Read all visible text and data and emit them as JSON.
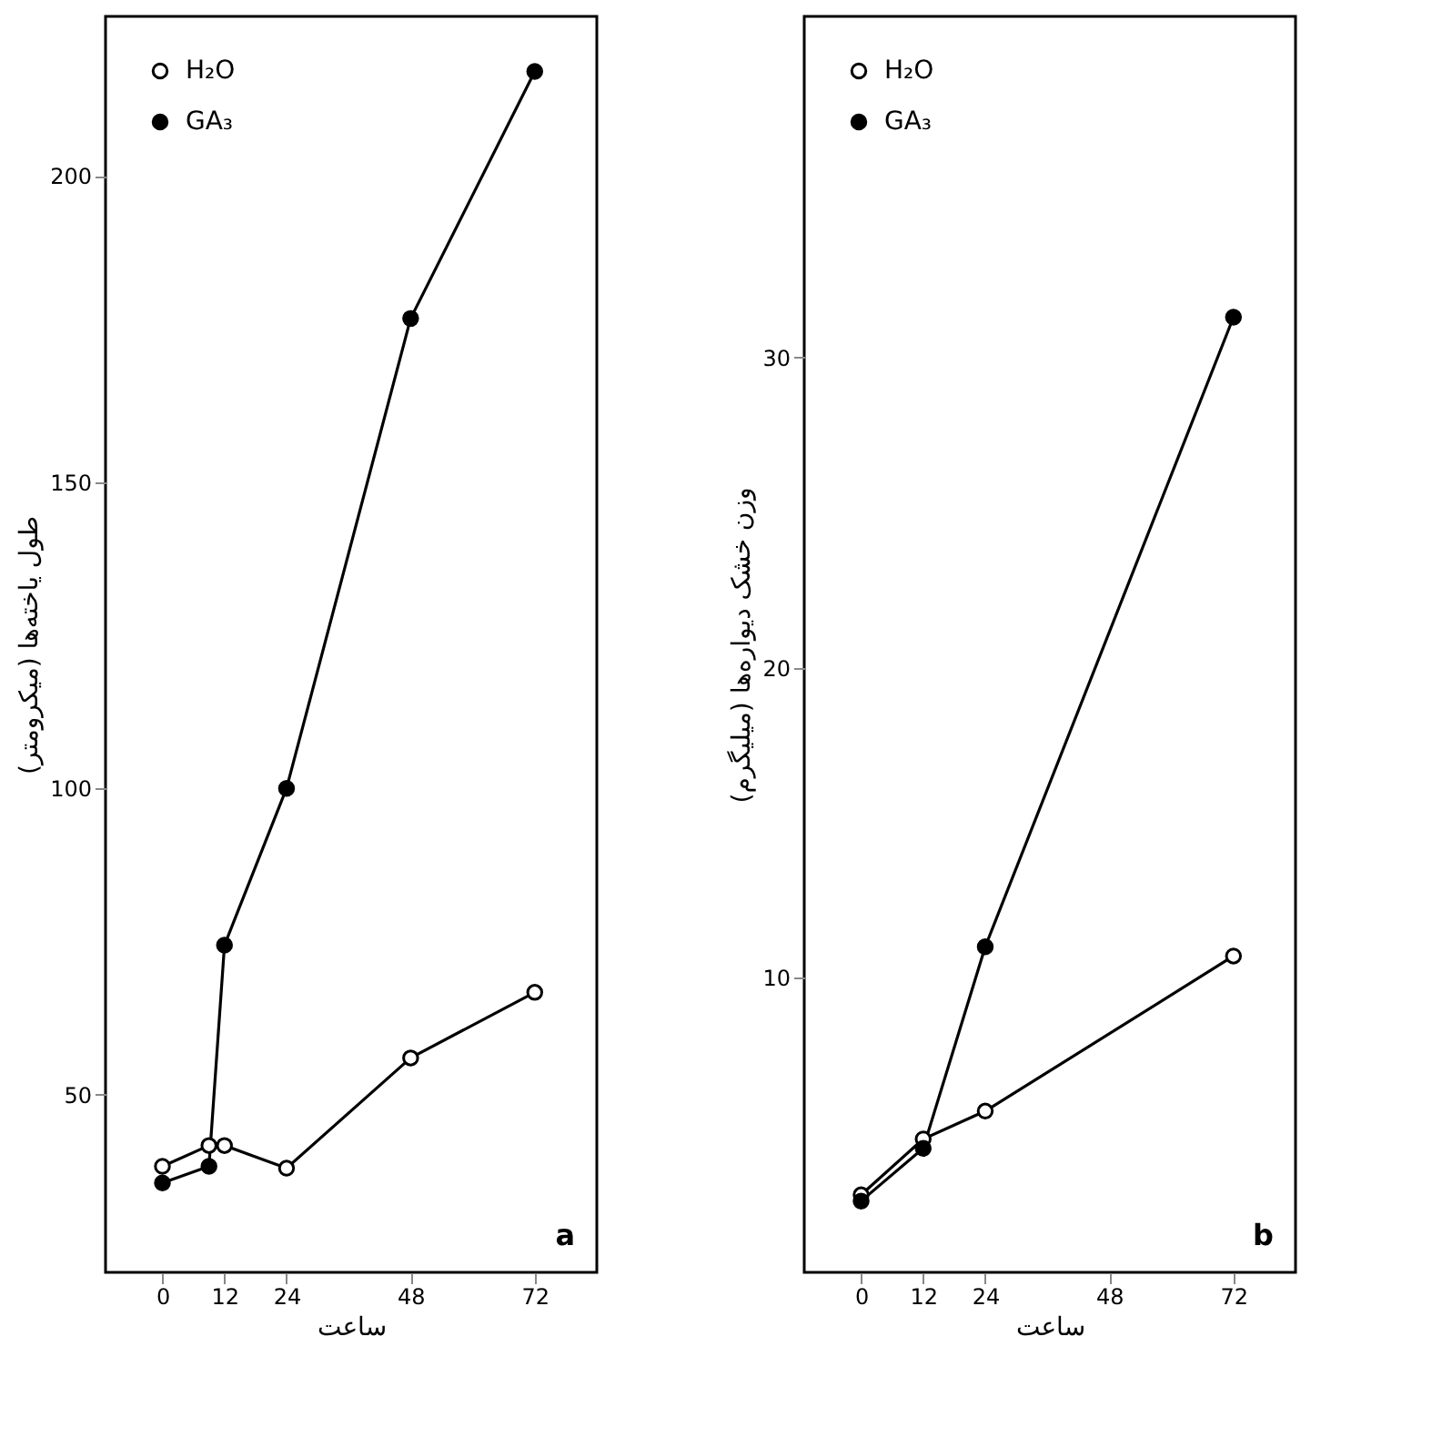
{
  "chart_data": [
    {
      "type": "line",
      "xlabel": "ساعت",
      "ylabel": "طول یاخته‌ها (میکرومتر)",
      "xlim": [
        -11,
        84
      ],
      "ylim": [
        21,
        226
      ],
      "xticks": [
        0,
        12,
        24,
        48,
        72
      ],
      "yticks": [
        50,
        100,
        150,
        200
      ],
      "grid": false,
      "legend": "top left",
      "marker": "circle",
      "line_style": "solid",
      "annotations": [
        "a"
      ],
      "series": [
        {
          "name": "H₂O",
          "color": "#000000",
          "x": [
            0,
            9,
            12,
            24,
            48,
            72
          ],
          "values": [
            38.3,
            41.7,
            41.7,
            38,
            56,
            66.7
          ]
        },
        {
          "name": "GA₃",
          "color": "#000000",
          "x": [
            0,
            9,
            12,
            24,
            48,
            72
          ],
          "values": [
            35.6,
            38.3,
            74.4,
            100,
            176.7,
            217
          ]
        }
      ]
    },
    {
      "type": "line",
      "xlabel": "ساعت",
      "ylabel": "وزن خشک دیواره‌ها (میلیگرم)",
      "xlim": [
        -11,
        84
      ],
      "ylim": [
        0.5,
        41
      ],
      "xticks": [
        0,
        12,
        24,
        48,
        72
      ],
      "yticks": [
        10,
        20,
        30
      ],
      "grid": false,
      "legend": "top left",
      "marker": "circle",
      "line_style": "solid",
      "annotations": [
        "b"
      ],
      "series": [
        {
          "name": "H₂O",
          "color": "#000000",
          "x": [
            0,
            12,
            24,
            72
          ],
          "values": [
            3.0,
            4.8,
            5.7,
            10.7
          ]
        },
        {
          "name": "GA₃",
          "color": "#000000",
          "x": [
            0,
            12,
            24,
            72
          ],
          "values": [
            2.8,
            4.5,
            11.0,
            31.3
          ]
        }
      ]
    }
  ]
}
